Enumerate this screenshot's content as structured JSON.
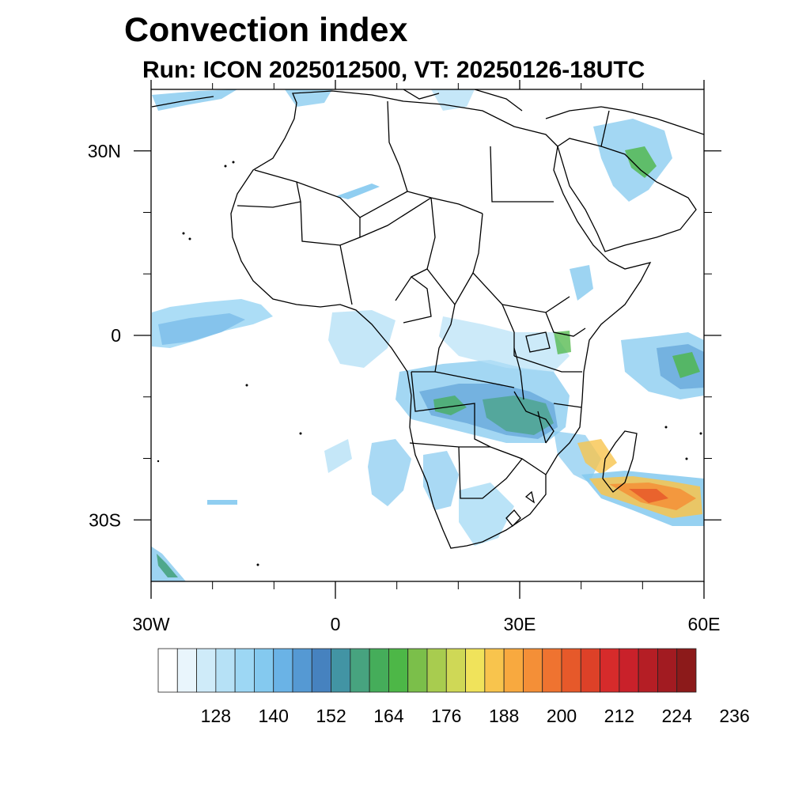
{
  "title": "Convection index",
  "subtitle": "Run: ICON 2025012500,  VT: 20250126-18UTC",
  "map": {
    "lon_range": [
      -30,
      60
    ],
    "lat_range": [
      -40,
      40
    ],
    "lon_ticks": [
      {
        "value": -30,
        "label": "30W"
      },
      {
        "value": 0,
        "label": "0"
      },
      {
        "value": 30,
        "label": "30E"
      },
      {
        "value": 60,
        "label": "60E"
      }
    ],
    "lat_ticks": [
      {
        "value": 30,
        "label": "30N"
      },
      {
        "value": 0,
        "label": "0"
      },
      {
        "value": -30,
        "label": "30S"
      }
    ],
    "minor_lon_ticks": [
      -20,
      -10,
      10,
      20,
      40,
      50
    ],
    "minor_lat_ticks": [
      20,
      10,
      -10,
      -20
    ]
  },
  "colorbar": {
    "colors": [
      "#ffffff",
      "#e9f5fc",
      "#cfebf9",
      "#b6e1f6",
      "#9dd7f4",
      "#84c9ef",
      "#6ab3e6",
      "#5599d3",
      "#4682bf",
      "#4294a4",
      "#47a37f",
      "#45ad5a",
      "#4db747",
      "#7bbf4a",
      "#a8cc4f",
      "#cfd856",
      "#f0e35b",
      "#f8c44d",
      "#f8a93f",
      "#f48f37",
      "#ef7330",
      "#e6592a",
      "#dd4128",
      "#d62b2b",
      "#c9212a",
      "#b51e25",
      "#a21b21",
      "#8c1a1a"
    ],
    "tick_labels": [
      "128",
      "140",
      "152",
      "164",
      "176",
      "188",
      "200",
      "212",
      "224",
      "236"
    ]
  }
}
